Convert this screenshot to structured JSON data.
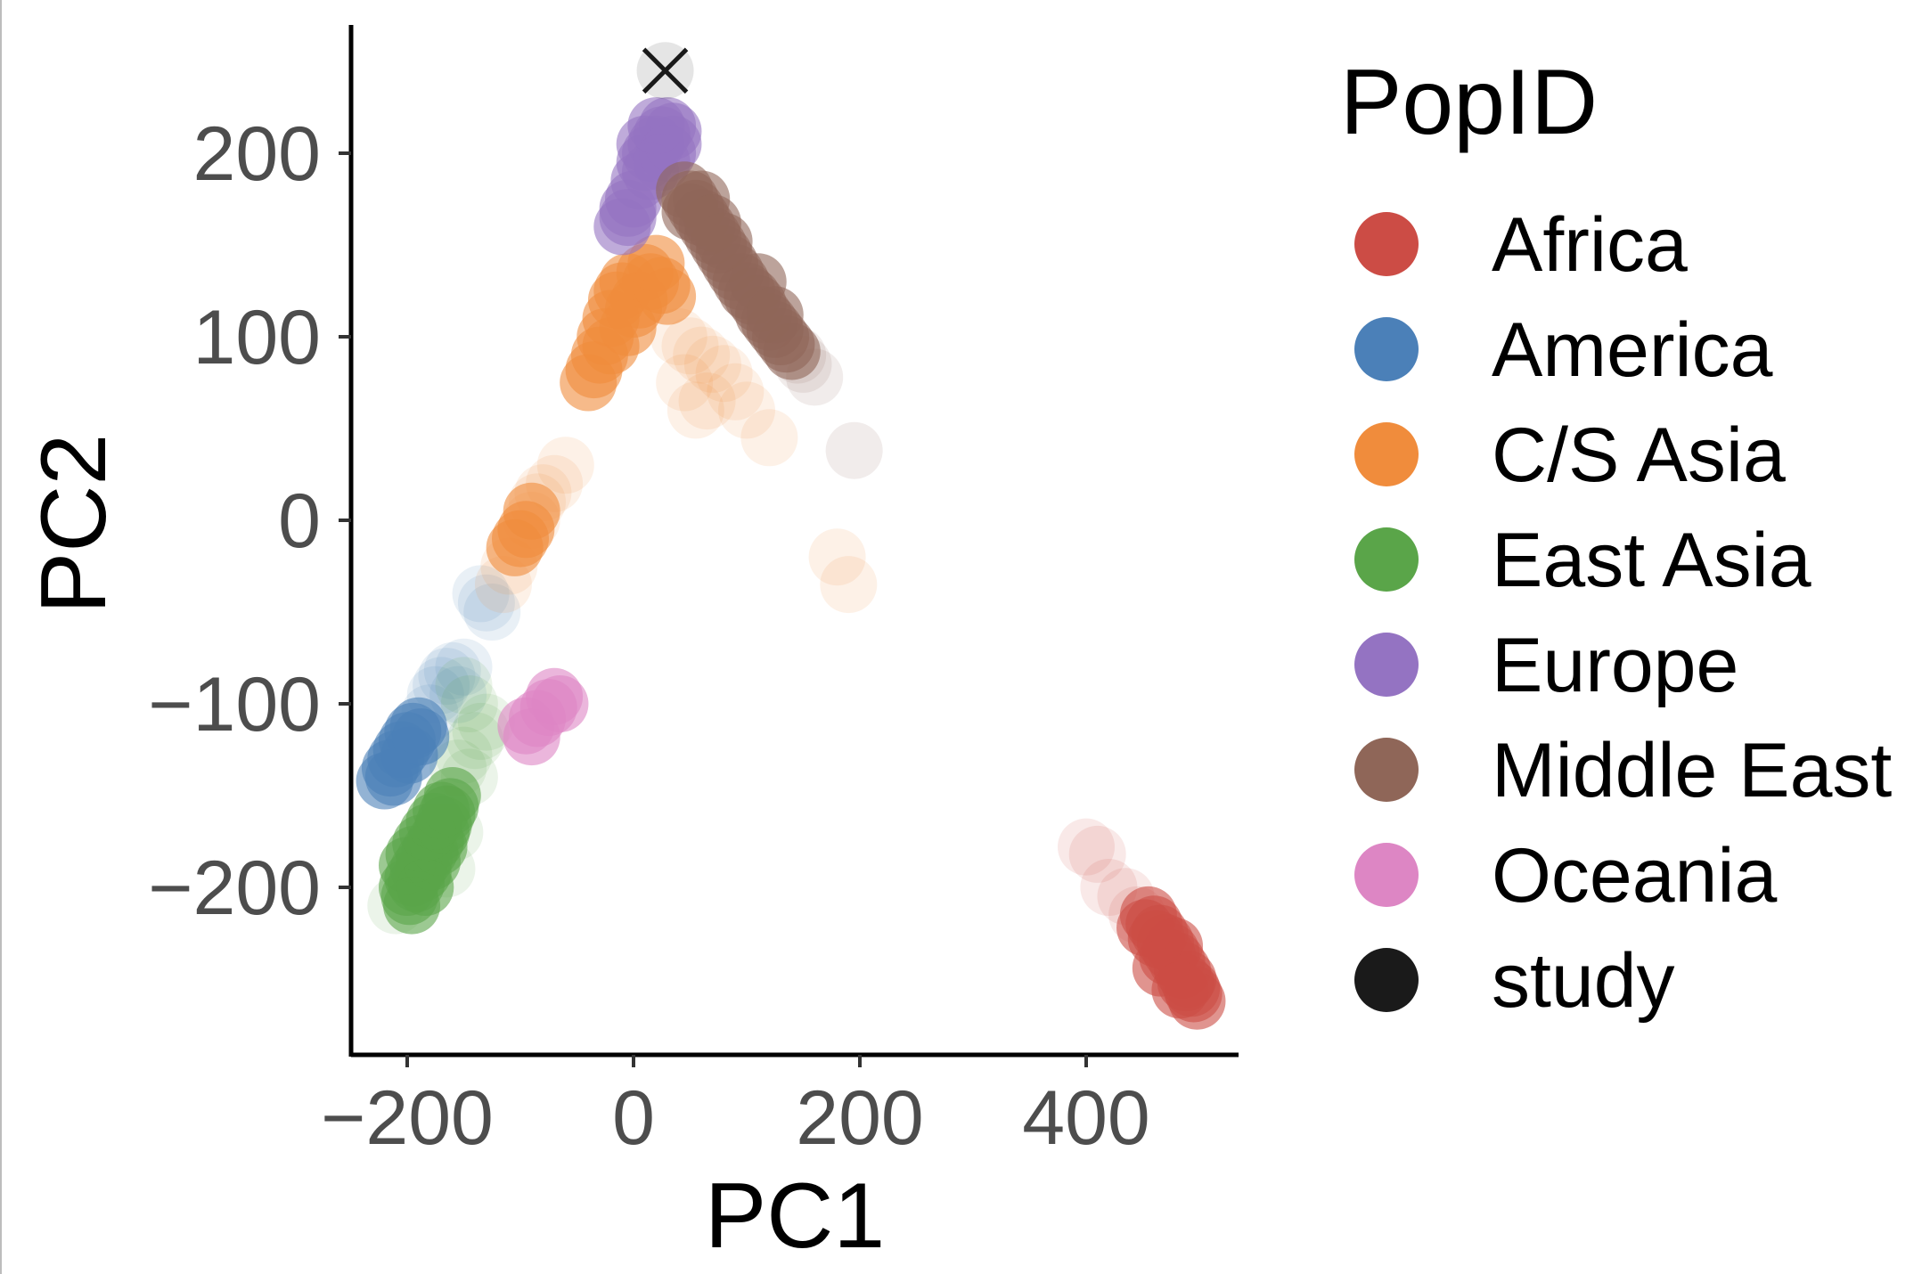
{
  "chart_data": {
    "type": "scatter",
    "title": "",
    "xlabel": "PC1",
    "ylabel": "PC2",
    "xlim": [
      -250,
      530
    ],
    "ylim": [
      -290,
      270
    ],
    "xticks": [
      -200,
      0,
      200,
      400
    ],
    "yticks": [
      200,
      100,
      0,
      -100,
      -200
    ],
    "grid": false,
    "legend": {
      "title": "PopID",
      "placement": "right",
      "entries": [
        "Africa",
        "America",
        "C/S Asia",
        "East Asia",
        "Europe",
        "Middle East",
        "Oceania",
        "study"
      ]
    },
    "colors": {
      "Africa": "#cc4c45",
      "America": "#4b80b8",
      "C/S Asia": "#f08c3c",
      "East Asia": "#5aa549",
      "Europe": "#9473c2",
      "Middle East": "#8f6658",
      "Oceania": "#dd86c4",
      "study": "#1a1a1a"
    },
    "series": [
      {
        "name": "Africa",
        "points": [
          [
            470,
            -230
          ],
          [
            475,
            -235
          ],
          [
            480,
            -240
          ],
          [
            485,
            -245
          ],
          [
            490,
            -250
          ],
          [
            493,
            -255
          ],
          [
            495,
            -258
          ],
          [
            460,
            -220
          ],
          [
            465,
            -225
          ],
          [
            455,
            -215
          ],
          [
            472,
            -238
          ],
          [
            488,
            -252
          ],
          [
            478,
            -232
          ],
          [
            466,
            -244
          ],
          [
            452,
            -222
          ],
          [
            498,
            -262
          ],
          [
            483,
            -256
          ],
          [
            462,
            -228
          ]
        ],
        "faint": [
          [
            400,
            -178
          ],
          [
            410,
            -182
          ],
          [
            420,
            -200
          ],
          [
            435,
            -205
          ],
          [
            445,
            -215
          ]
        ]
      },
      {
        "name": "America",
        "points": [
          [
            -220,
            -142
          ],
          [
            -215,
            -135
          ],
          [
            -210,
            -130
          ],
          [
            -205,
            -125
          ],
          [
            -200,
            -120
          ],
          [
            -195,
            -115
          ],
          [
            -190,
            -112
          ],
          [
            -212,
            -140
          ],
          [
            -198,
            -128
          ],
          [
            -188,
            -118
          ]
        ],
        "faint": [
          [
            -180,
            -105
          ],
          [
            -175,
            -95
          ],
          [
            -170,
            -90
          ],
          [
            -165,
            -85
          ],
          [
            -160,
            -82
          ],
          [
            -150,
            -80
          ],
          [
            -155,
            -95
          ],
          [
            -130,
            -45
          ],
          [
            -125,
            -50
          ],
          [
            -135,
            -40
          ]
        ]
      },
      {
        "name": "C/S Asia",
        "points": [
          [
            -35,
            82
          ],
          [
            -40,
            75
          ],
          [
            -30,
            90
          ],
          [
            -25,
            100
          ],
          [
            -20,
            110
          ],
          [
            -15,
            120
          ],
          [
            -10,
            125
          ],
          [
            -5,
            130
          ],
          [
            0,
            115
          ],
          [
            5,
            120
          ],
          [
            10,
            135
          ],
          [
            15,
            130
          ],
          [
            20,
            140
          ],
          [
            25,
            128
          ],
          [
            30,
            122
          ],
          [
            -20,
            95
          ],
          [
            -5,
            105
          ],
          [
            -100,
            -10
          ],
          [
            -95,
            -5
          ],
          [
            -90,
            5
          ],
          [
            -105,
            -15
          ]
        ],
        "faint": [
          [
            -60,
            30
          ],
          [
            -70,
            20
          ],
          [
            -80,
            15
          ],
          [
            -85,
            10
          ],
          [
            -90,
            0
          ],
          [
            -110,
            -25
          ],
          [
            -115,
            -35
          ],
          [
            40,
            100
          ],
          [
            50,
            95
          ],
          [
            60,
            90
          ],
          [
            70,
            85
          ],
          [
            80,
            80
          ],
          [
            90,
            70
          ],
          [
            100,
            60
          ],
          [
            120,
            45
          ],
          [
            55,
            60
          ],
          [
            45,
            75
          ],
          [
            65,
            65
          ],
          [
            180,
            -20
          ],
          [
            190,
            -35
          ]
        ]
      },
      {
        "name": "East Asia",
        "points": [
          [
            -200,
            -200
          ],
          [
            -195,
            -195
          ],
          [
            -190,
            -190
          ],
          [
            -185,
            -185
          ],
          [
            -180,
            -180
          ],
          [
            -175,
            -175
          ],
          [
            -170,
            -170
          ],
          [
            -165,
            -160
          ],
          [
            -160,
            -150
          ],
          [
            -198,
            -205
          ],
          [
            -192,
            -198
          ],
          [
            -186,
            -192
          ],
          [
            -178,
            -186
          ],
          [
            -172,
            -178
          ],
          [
            -168,
            -166
          ],
          [
            -162,
            -156
          ],
          [
            -200,
            -188
          ],
          [
            -194,
            -182
          ],
          [
            -188,
            -176
          ],
          [
            -182,
            -170
          ],
          [
            -176,
            -164
          ],
          [
            -170,
            -158
          ],
          [
            -196,
            -210
          ],
          [
            -184,
            -200
          ]
        ],
        "faint": [
          [
            -155,
            -135
          ],
          [
            -150,
            -128
          ],
          [
            -145,
            -140
          ],
          [
            -140,
            -120
          ],
          [
            -135,
            -115
          ],
          [
            -130,
            -110
          ],
          [
            -158,
            -170
          ],
          [
            -165,
            -190
          ],
          [
            -210,
            -210
          ],
          [
            -150,
            -90
          ],
          [
            -145,
            -100
          ]
        ]
      },
      {
        "name": "Europe",
        "points": [
          [
            -10,
            160
          ],
          [
            -5,
            170
          ],
          [
            0,
            175
          ],
          [
            5,
            185
          ],
          [
            10,
            195
          ],
          [
            15,
            200
          ],
          [
            20,
            205
          ],
          [
            25,
            210
          ],
          [
            30,
            215
          ],
          [
            35,
            212
          ],
          [
            10,
            205
          ],
          [
            15,
            190
          ],
          [
            25,
            195
          ],
          [
            35,
            205
          ],
          [
            20,
            215
          ],
          [
            -5,
            165
          ],
          [
            30,
            200
          ]
        ],
        "faint": []
      },
      {
        "name": "Middle East",
        "points": [
          [
            45,
            180
          ],
          [
            50,
            175
          ],
          [
            55,
            170
          ],
          [
            60,
            165
          ],
          [
            65,
            160
          ],
          [
            70,
            155
          ],
          [
            75,
            150
          ],
          [
            80,
            145
          ],
          [
            85,
            140
          ],
          [
            90,
            135
          ],
          [
            95,
            130
          ],
          [
            100,
            125
          ],
          [
            105,
            122
          ],
          [
            110,
            118
          ],
          [
            115,
            112
          ],
          [
            120,
            108
          ],
          [
            125,
            104
          ],
          [
            130,
            100
          ],
          [
            135,
            96
          ],
          [
            140,
            92
          ],
          [
            50,
            168
          ],
          [
            60,
            175
          ],
          [
            70,
            162
          ],
          [
            80,
            152
          ],
          [
            110,
            130
          ],
          [
            125,
            112
          ]
        ],
        "faint": [
          [
            145,
            90
          ],
          [
            150,
            85
          ],
          [
            160,
            78
          ],
          [
            195,
            38
          ]
        ]
      },
      {
        "name": "Oceania",
        "points": [
          [
            -95,
            -112
          ],
          [
            -85,
            -108
          ],
          [
            -75,
            -102
          ],
          [
            -65,
            -100
          ],
          [
            -90,
            -118
          ],
          [
            -70,
            -96
          ]
        ],
        "faint": []
      },
      {
        "name": "study",
        "points": [
          [
            28,
            245
          ]
        ],
        "marker": "x"
      }
    ]
  }
}
